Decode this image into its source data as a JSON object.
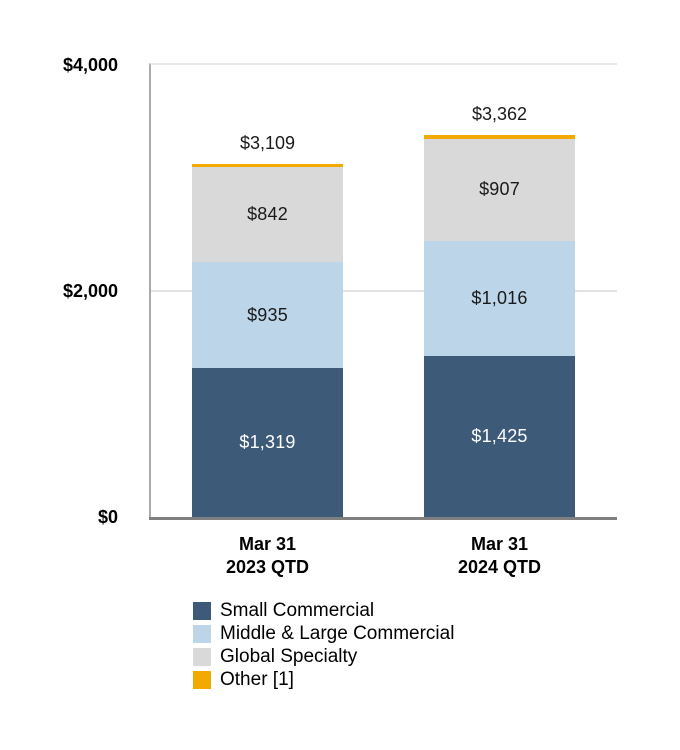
{
  "chart_data": {
    "type": "bar",
    "stacked": true,
    "title": "",
    "xlabel": "",
    "ylabel": "",
    "grid": "horizontal",
    "legend_position": "bottom-left",
    "categories": [
      {
        "line1": "Mar 31",
        "line2": "2023 QTD"
      },
      {
        "line1": "Mar 31",
        "line2": "2024 QTD"
      }
    ],
    "series": [
      {
        "name": "Small Commercial",
        "color": "#3D5A78",
        "text_color": "#FFFFFF",
        "values": [
          1319,
          1425
        ],
        "value_labels": [
          "$1,319",
          "$1,425"
        ]
      },
      {
        "name": "Middle & Large Commercial",
        "color": "#BCD5E8",
        "text_color": "#1A1A1A",
        "values": [
          935,
          1016
        ],
        "value_labels": [
          "$935",
          "$1,016"
        ]
      },
      {
        "name": "Global Specialty",
        "color": "#D9D9D9",
        "text_color": "#1A1A1A",
        "values": [
          842,
          907
        ],
        "value_labels": [
          "$842",
          "$907"
        ]
      },
      {
        "name": "Other [1]",
        "color": "#F2A900",
        "text_color": "#1A1A1A",
        "values": [
          13,
          14
        ],
        "value_labels": [
          "",
          ""
        ]
      }
    ],
    "totals": {
      "values": [
        3109,
        3362
      ],
      "labels": [
        "$3,109",
        "$3,362"
      ]
    },
    "y_axis": {
      "min": 0,
      "max": 4000,
      "ticks": [
        {
          "value": 4000,
          "label": "$4,000"
        },
        {
          "value": 2000,
          "label": "$2,000"
        },
        {
          "value": 0,
          "label": "$0"
        }
      ]
    },
    "style": {
      "axis_color": "#808080",
      "plot_border_color": "#ABABAB",
      "top_border_color": "#E9E9E9",
      "grid_color": "#E3E3E3",
      "background": "#FFFFFF"
    }
  }
}
